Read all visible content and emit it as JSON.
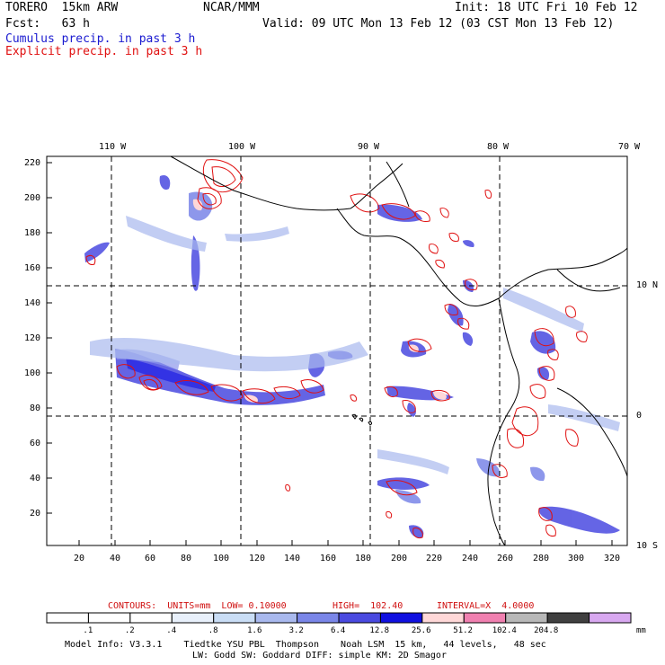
{
  "header": {
    "model": "TORERO  15km ARW",
    "center": "NCAR/MMM",
    "init": "Init: 18 UTC Fri 10 Feb 12",
    "fcst": "Fcst:   63 h",
    "valid": "Valid: 09 UTC Mon 13 Feb 12 (03 CST Mon 13 Feb 12)",
    "line1": "Cumulus precip. in past 3 h",
    "line2": "Explicit precip. in past 3 h"
  },
  "axes": {
    "lon_labels": [
      "110 W",
      "100 W",
      "90 W",
      "80 W",
      "70 W"
    ],
    "lat_labels": [
      "10 N",
      "0",
      "10 S"
    ],
    "y_ticks": [
      "220",
      "200",
      "180",
      "160",
      "140",
      "120",
      "100",
      "80",
      "60",
      "40",
      "20"
    ],
    "x_ticks": [
      "20",
      "40",
      "60",
      "80",
      "100",
      "120",
      "140",
      "160",
      "180",
      "200",
      "220",
      "240",
      "260",
      "280",
      "300",
      "320"
    ]
  },
  "contour_info": {
    "units": "CONTOURS:  UNITS=mm  LOW= 0.10000",
    "high": "HIGH=  102.40",
    "interval": "INTERVAL=X  4.0000"
  },
  "colorbar": {
    "labels": [
      ".1",
      ".2",
      ".4",
      ".8",
      "1.6",
      "3.2",
      "6.4",
      "12.8",
      "25.6",
      "51.2",
      "102.4",
      "204.8"
    ],
    "unit": "mm",
    "colors": [
      "#ffffff",
      "#ffffff",
      "#ffffff",
      "#e8f0fb",
      "#c9ddf5",
      "#a9b9ee",
      "#7a86e8",
      "#4a4ae0",
      "#1010e0",
      "#ffd8d8",
      "#f080b0",
      "#b8b8b8",
      "#404040",
      "#d8a8f0"
    ]
  },
  "footer": {
    "line1": "Model Info: V3.3.1    Tiedtke YSU PBL  Thompson    Noah LSM  15 km,   44 levels,   48 sec",
    "line2": "LW: Godd SW: Goddard DIFF: simple KM: 2D Smagor"
  }
}
